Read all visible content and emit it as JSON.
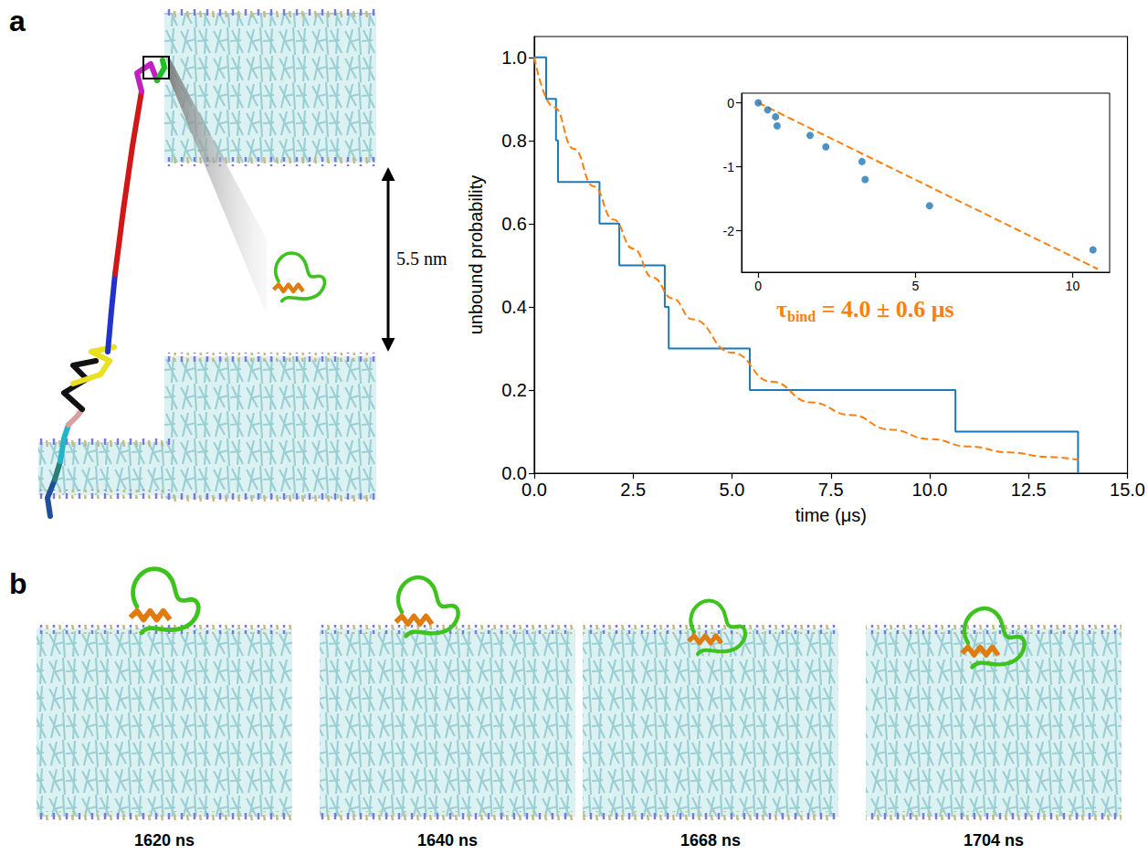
{
  "panels": {
    "a": {
      "label": "a",
      "distance_label": "5.5 nm"
    },
    "b": {
      "label": "b",
      "frames": [
        "1620 ns",
        "1640 ns",
        "1668 ns",
        "1704 ns"
      ]
    }
  },
  "chart_data": [
    {
      "type": "line",
      "x_label": "time (μs)",
      "y_label": "unbound probability",
      "xlim": [
        0,
        15
      ],
      "ylim": [
        0,
        1.05
      ],
      "xticks": [
        {
          "value": 0,
          "label": "0.0"
        },
        2.5,
        {
          "value": 5,
          "label": "5.0"
        },
        7.5,
        {
          "value": 10,
          "label": "10.0"
        },
        12.5,
        {
          "value": 15,
          "label": "15.0"
        }
      ],
      "yticks": [
        {
          "value": 0,
          "label": "0.0"
        },
        0.2,
        0.4,
        0.6,
        0.8,
        {
          "value": 1,
          "label": "1.0"
        }
      ],
      "grid": false,
      "annotation": {
        "symbol": "τ",
        "subscript": "bind",
        "text": " = 4.0 ± 0.6 μs",
        "color": "#ff7f0e"
      },
      "series": [
        {
          "type": "step",
          "color": "#1f77b4",
          "line_style": "solid",
          "x": [
            0,
            0.3,
            0.55,
            0.6,
            1.65,
            2.15,
            3.3,
            3.4,
            5.45,
            10.65,
            13.75
          ],
          "values": [
            1.0,
            0.9,
            0.8,
            0.7,
            0.6,
            0.5,
            0.4,
            0.3,
            0.2,
            0.1,
            0.0
          ]
        },
        {
          "type": "line",
          "color": "#ff7f0e",
          "line_style": "dashed",
          "x": [
            0,
            0.5,
            1,
            1.5,
            2,
            2.5,
            3,
            3.5,
            4,
            5,
            6,
            7,
            8,
            9,
            10,
            11,
            12,
            13,
            13.75
          ],
          "values": [
            1.0,
            0.88,
            0.78,
            0.69,
            0.61,
            0.54,
            0.47,
            0.42,
            0.37,
            0.29,
            0.22,
            0.17,
            0.14,
            0.105,
            0.082,
            0.064,
            0.05,
            0.039,
            0.032
          ]
        }
      ]
    },
    {
      "type": "scatter",
      "xlim": [
        -0.53,
        11.18
      ],
      "ylim": [
        -2.65,
        0.15
      ],
      "xticks": [
        0,
        5,
        10
      ],
      "yticks": [
        -2,
        -1,
        0
      ],
      "grid": false,
      "series": [
        {
          "type": "scatter",
          "color": "#1f77b4",
          "marker": "circle",
          "x": [
            0,
            0.3,
            0.55,
            0.6,
            1.65,
            2.15,
            3.3,
            3.4,
            5.45,
            10.65
          ],
          "values": [
            0,
            -0.11,
            -0.22,
            -0.36,
            -0.51,
            -0.69,
            -0.92,
            -1.2,
            -1.61,
            -2.3
          ]
        },
        {
          "type": "line",
          "color": "#ff7f0e",
          "line_style": "dashed",
          "x": [
            0,
            10.8
          ],
          "values": [
            0,
            -2.6
          ]
        }
      ]
    }
  ]
}
